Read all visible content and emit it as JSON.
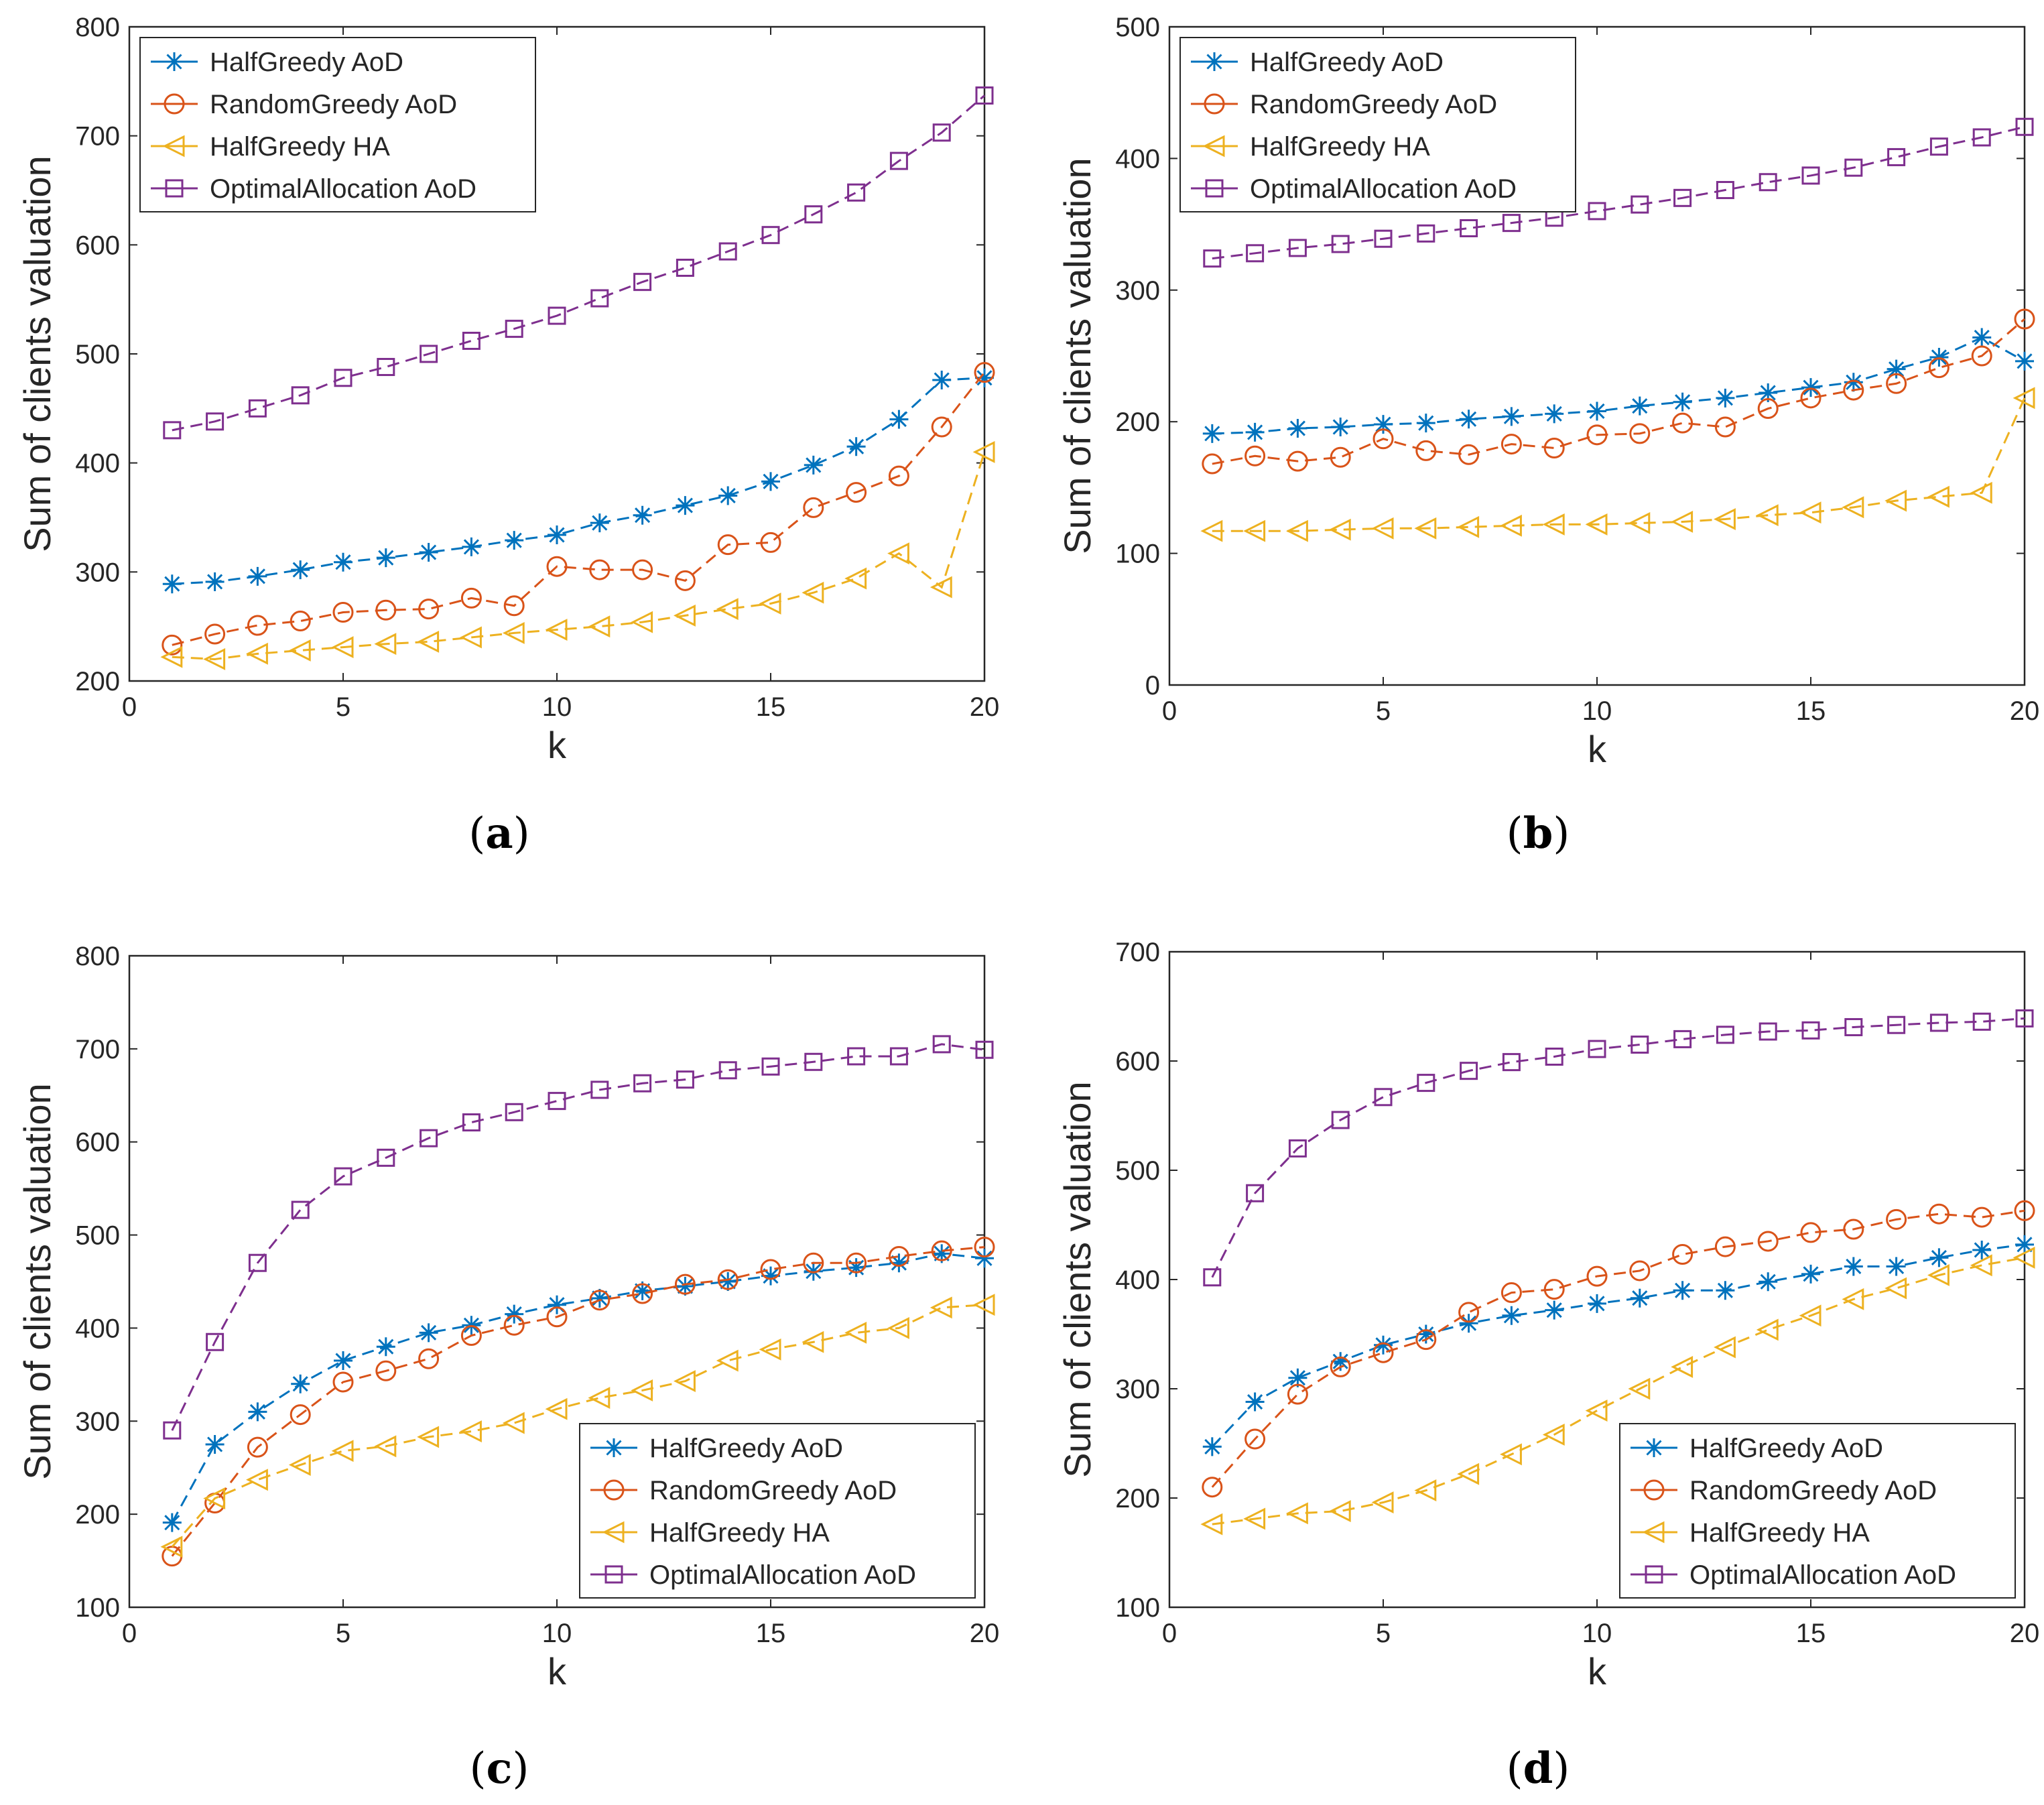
{
  "chart_data": [
    {
      "panel": "a",
      "caption_letter": "a",
      "type": "line",
      "xlabel": "k",
      "ylabel": "Sum of clients valuation",
      "xlim": [
        0,
        20
      ],
      "ylim": [
        200,
        800
      ],
      "xticks": [
        "0",
        "5",
        "10",
        "15",
        "20"
      ],
      "yticks": [
        "200",
        "300",
        "400",
        "500",
        "600",
        "700",
        "800"
      ],
      "legend_position": "top-left",
      "x": [
        1,
        2,
        3,
        4,
        5,
        6,
        7,
        8,
        9,
        10,
        11,
        12,
        13,
        14,
        15,
        16,
        17,
        18,
        19,
        20
      ],
      "series": [
        {
          "name": "HalfGreedy AoD",
          "color": "#0072BD",
          "marker": "star",
          "values": [
            289,
            291,
            296,
            302,
            309,
            313,
            318,
            323,
            329,
            334,
            345,
            352,
            361,
            370,
            383,
            398,
            415,
            440,
            476,
            478
          ]
        },
        {
          "name": "RandomGreedy AoD",
          "color": "#D95319",
          "marker": "circle",
          "values": [
            233,
            243,
            251,
            255,
            263,
            265,
            266,
            276,
            269,
            305,
            302,
            302,
            292,
            325,
            327,
            359,
            373,
            388,
            433,
            483
          ]
        },
        {
          "name": "HalfGreedy HA",
          "color": "#EDB120",
          "marker": "triangle-left",
          "values": [
            222,
            220,
            225,
            228,
            231,
            234,
            236,
            240,
            244,
            247,
            250,
            254,
            260,
            266,
            271,
            281,
            294,
            317,
            286,
            410
          ]
        },
        {
          "name": "OptimalAllocation AoD",
          "color": "#7E2F8E",
          "marker": "square",
          "values": [
            430,
            438,
            450,
            462,
            478,
            488,
            500,
            512,
            523,
            535,
            551,
            566,
            579,
            594,
            609,
            628,
            648,
            677,
            703,
            737
          ]
        }
      ]
    },
    {
      "panel": "b",
      "caption_letter": "b",
      "type": "line",
      "xlabel": "k",
      "ylabel": "Sum of clients valuation",
      "xlim": [
        0,
        20
      ],
      "ylim": [
        0,
        500
      ],
      "xticks": [
        "0",
        "5",
        "10",
        "15",
        "20"
      ],
      "yticks": [
        "0",
        "100",
        "200",
        "300",
        "400",
        "500"
      ],
      "legend_position": "top-left",
      "x": [
        1,
        2,
        3,
        4,
        5,
        6,
        7,
        8,
        9,
        10,
        11,
        12,
        13,
        14,
        15,
        16,
        17,
        18,
        19,
        20
      ],
      "series": [
        {
          "name": "HalfGreedy AoD",
          "color": "#0072BD",
          "marker": "star",
          "values": [
            191,
            192,
            195,
            196,
            198,
            199,
            202,
            204,
            206,
            208,
            212,
            215,
            218,
            222,
            226,
            230,
            240,
            249,
            264,
            246
          ]
        },
        {
          "name": "RandomGreedy AoD",
          "color": "#D95319",
          "marker": "circle",
          "values": [
            168,
            174,
            170,
            173,
            187,
            178,
            175,
            183,
            180,
            190,
            191,
            199,
            196,
            210,
            218,
            224,
            229,
            241,
            250,
            278
          ]
        },
        {
          "name": "HalfGreedy HA",
          "color": "#EDB120",
          "marker": "triangle-left",
          "values": [
            117,
            117,
            117,
            118,
            119,
            119,
            120,
            121,
            122,
            122,
            123,
            124,
            126,
            129,
            131,
            135,
            140,
            143,
            146,
            218
          ]
        },
        {
          "name": "OptimalAllocation AoD",
          "color": "#7E2F8E",
          "marker": "square",
          "values": [
            324,
            328,
            332,
            335,
            339,
            343,
            347,
            351,
            355,
            360,
            365,
            370,
            376,
            382,
            387,
            393,
            401,
            409,
            416,
            424
          ]
        }
      ]
    },
    {
      "panel": "c",
      "caption_letter": "c",
      "type": "line",
      "xlabel": "k",
      "ylabel": "Sum of clients valuation",
      "xlim": [
        0,
        20
      ],
      "ylim": [
        100,
        800
      ],
      "xticks": [
        "0",
        "5",
        "10",
        "15",
        "20"
      ],
      "yticks": [
        "100",
        "200",
        "300",
        "400",
        "500",
        "600",
        "700",
        "800"
      ],
      "legend_position": "bottom-right",
      "x": [
        1,
        2,
        3,
        4,
        5,
        6,
        7,
        8,
        9,
        10,
        11,
        12,
        13,
        14,
        15,
        16,
        17,
        18,
        19,
        20
      ],
      "series": [
        {
          "name": "HalfGreedy AoD",
          "color": "#0072BD",
          "marker": "star",
          "values": [
            191,
            275,
            310,
            340,
            365,
            380,
            395,
            403,
            415,
            425,
            432,
            440,
            445,
            450,
            456,
            461,
            465,
            470,
            480,
            475
          ]
        },
        {
          "name": "RandomGreedy AoD",
          "color": "#D95319",
          "marker": "circle",
          "values": [
            155,
            212,
            272,
            307,
            342,
            354,
            367,
            392,
            403,
            412,
            430,
            437,
            447,
            452,
            463,
            470,
            470,
            477,
            483,
            487
          ]
        },
        {
          "name": "HalfGreedy HA",
          "color": "#EDB120",
          "marker": "triangle-left",
          "values": [
            165,
            217,
            237,
            253,
            268,
            273,
            283,
            289,
            298,
            313,
            325,
            333,
            343,
            365,
            377,
            385,
            395,
            400,
            422,
            425
          ]
        },
        {
          "name": "OptimalAllocation AoD",
          "color": "#7E2F8E",
          "marker": "square",
          "values": [
            290,
            385,
            470,
            527,
            563,
            583,
            604,
            621,
            632,
            644,
            656,
            663,
            667,
            677,
            681,
            686,
            692,
            692,
            705,
            699
          ]
        }
      ]
    },
    {
      "panel": "d",
      "caption_letter": "d",
      "type": "line",
      "xlabel": "k",
      "ylabel": "Sum of clients valuation",
      "xlim": [
        0,
        20
      ],
      "ylim": [
        100,
        700
      ],
      "xticks": [
        "0",
        "5",
        "10",
        "15",
        "20"
      ],
      "yticks": [
        "100",
        "200",
        "300",
        "400",
        "500",
        "600",
        "700"
      ],
      "legend_position": "bottom-right",
      "x": [
        1,
        2,
        3,
        4,
        5,
        6,
        7,
        8,
        9,
        10,
        11,
        12,
        13,
        14,
        15,
        16,
        17,
        18,
        19,
        20
      ],
      "series": [
        {
          "name": "HalfGreedy AoD",
          "color": "#0072BD",
          "marker": "star",
          "values": [
            247,
            288,
            310,
            325,
            340,
            350,
            360,
            367,
            372,
            378,
            383,
            390,
            390,
            398,
            405,
            412,
            412,
            420,
            427,
            432
          ]
        },
        {
          "name": "RandomGreedy AoD",
          "color": "#D95319",
          "marker": "circle",
          "values": [
            210,
            254,
            295,
            320,
            333,
            345,
            370,
            388,
            391,
            403,
            408,
            423,
            430,
            435,
            443,
            446,
            455,
            460,
            457,
            463
          ]
        },
        {
          "name": "HalfGreedy HA",
          "color": "#EDB120",
          "marker": "triangle-left",
          "values": [
            176,
            181,
            186,
            188,
            196,
            207,
            222,
            240,
            258,
            280,
            300,
            320,
            338,
            354,
            367,
            382,
            392,
            404,
            413,
            420
          ]
        },
        {
          "name": "OptimalAllocation AoD",
          "color": "#7E2F8E",
          "marker": "square",
          "values": [
            402,
            479,
            520,
            546,
            567,
            580,
            591,
            599,
            604,
            611,
            615,
            620,
            624,
            627,
            628,
            631,
            633,
            635,
            636,
            639
          ]
        }
      ]
    }
  ]
}
